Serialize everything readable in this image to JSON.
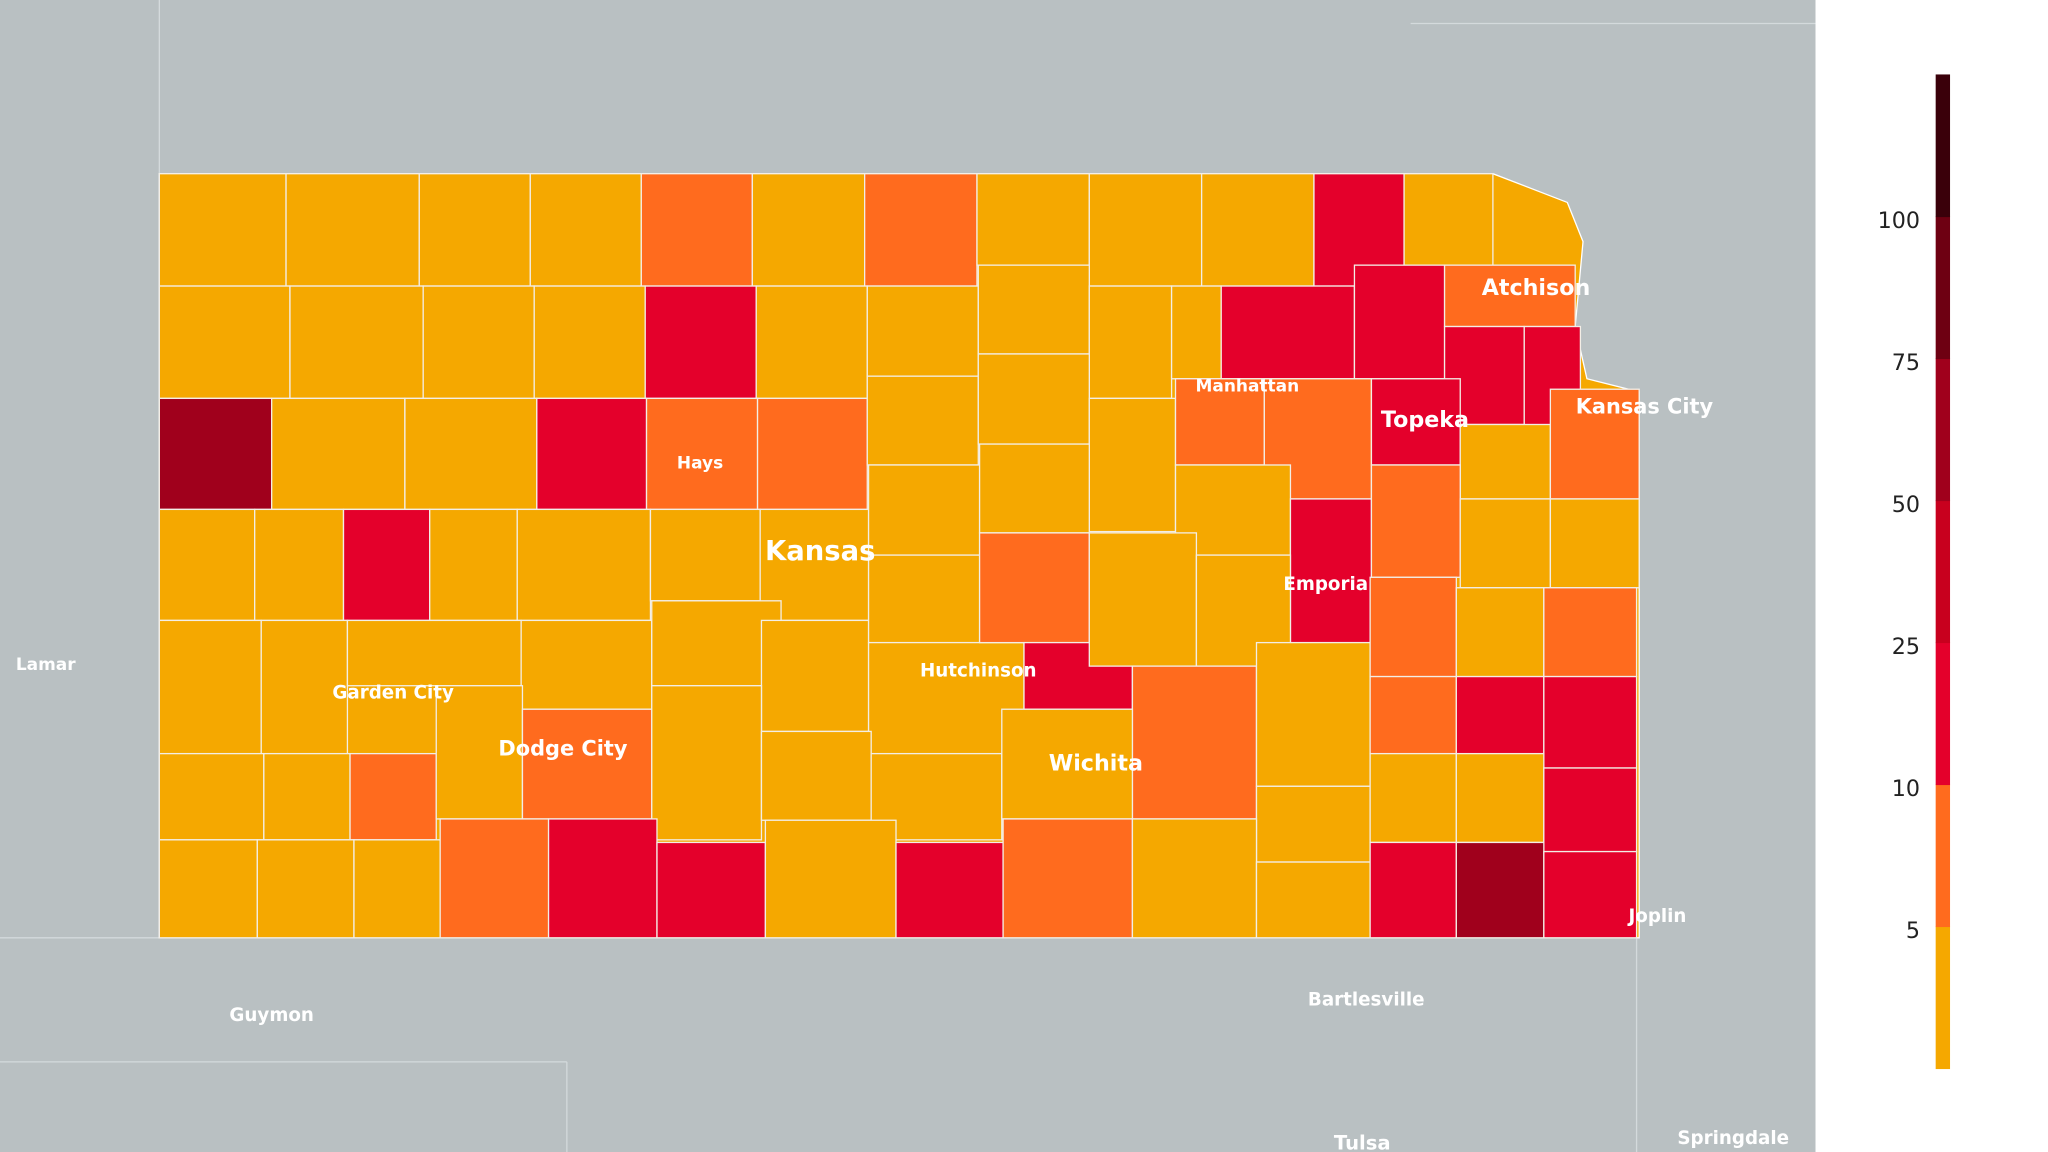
{
  "map": {
    "labels": [
      "Atchison",
      "Kansas City",
      "Manhattan",
      "Topeka",
      "Hays",
      "Kansas",
      "Emporia",
      "Hutchinson",
      "Garden City",
      "Dodge City",
      "Wichita",
      "Joplin",
      "Lamar",
      "Guymon",
      "Bartlesville",
      "Tulsa",
      "Springdale"
    ]
  },
  "legend": {
    "ticks": [
      5,
      10,
      25,
      50,
      75,
      100
    ],
    "colors": [
      "#f5a800",
      "#ff6b1e",
      "#e4002b",
      "#c8001e",
      "#a0001c",
      "#6e0012",
      "#3a000a"
    ]
  }
}
